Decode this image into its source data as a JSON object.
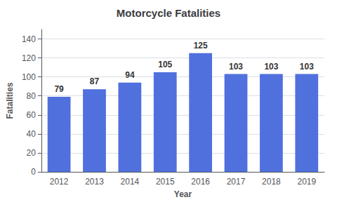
{
  "chart_data": {
    "type": "bar",
    "title": "Motorcycle Fatalities",
    "x_label": "Year",
    "y_label": "Fatalities",
    "categories": [
      "2012",
      "2013",
      "2014",
      "2015",
      "2016",
      "2017",
      "2018",
      "2019"
    ],
    "values": [
      79,
      87,
      94,
      105,
      125,
      103,
      103,
      103
    ],
    "ylim": [
      0,
      150
    ],
    "yticks": [
      0,
      20,
      40,
      60,
      80,
      100,
      120,
      140
    ],
    "grid": true,
    "data_labels": true
  }
}
